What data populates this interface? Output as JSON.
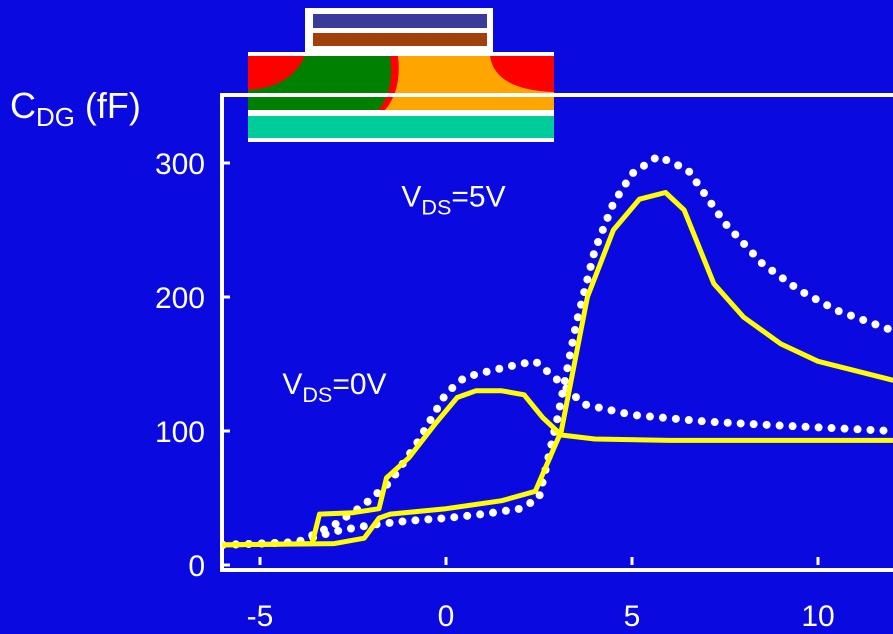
{
  "chart_data": {
    "type": "line",
    "y_label": {
      "main": "C",
      "sub": "DG",
      "rest": " (fF)"
    },
    "xlim": [
      -6,
      12
    ],
    "xticks": [
      -5,
      0,
      5,
      10
    ],
    "ylim": [
      0,
      350
    ],
    "yticks": [
      0,
      100,
      200,
      300
    ],
    "annotations": [
      {
        "main": "V",
        "sub": "DS",
        "rest": "=5V",
        "x": -1.2,
        "y": 275
      },
      {
        "main": "V",
        "sub": "DS",
        "rest": "=0V",
        "x": -4.4,
        "y": 135
      }
    ],
    "series": [
      {
        "color": "#ffffff",
        "style": "dotted",
        "x": [
          -6,
          -4,
          -3,
          -2.2,
          -1.5,
          -0.8,
          0,
          0.5,
          1.2,
          2,
          2.4,
          3,
          3.7,
          5,
          7,
          9,
          12
        ],
        "values": [
          15,
          17,
          30,
          45,
          62,
          90,
          128,
          140,
          145,
          150,
          152,
          138,
          120,
          112,
          107,
          104,
          100
        ]
      },
      {
        "color": "#ffffff",
        "style": "dotted",
        "x": [
          -6,
          -4,
          -3,
          -2,
          -1,
          0,
          1,
          2,
          2.5,
          3,
          3.5,
          4,
          4.5,
          5,
          5.7,
          6.5,
          7.5,
          8.5,
          9.5,
          10.5,
          12
        ],
        "values": [
          15,
          17,
          25,
          30,
          33,
          35,
          38,
          42,
          50,
          110,
          180,
          235,
          270,
          292,
          305,
          295,
          255,
          225,
          205,
          190,
          175
        ]
      },
      {
        "color": "#ffff00",
        "style": "solid",
        "x": [
          -6,
          -3.6,
          -3.4,
          -2.5,
          -1.8,
          -1.6,
          -1,
          -0.3,
          0.3,
          0.8,
          1.5,
          2.1,
          2.6,
          3.1,
          4,
          6,
          8,
          10,
          12
        ],
        "values": [
          15,
          16,
          38,
          39,
          42,
          65,
          80,
          105,
          125,
          130,
          130,
          127,
          110,
          97,
          94,
          93,
          93,
          93,
          93
        ]
      },
      {
        "color": "#ffff00",
        "style": "solid",
        "x": [
          -6,
          -3,
          -2.2,
          -1.8,
          -1.5,
          0,
          1.5,
          2.4,
          3.1,
          3.8,
          4.5,
          5.2,
          5.9,
          6.4,
          7.2,
          8,
          9,
          10,
          11,
          12
        ],
        "values": [
          15,
          16,
          20,
          35,
          38,
          42,
          48,
          55,
          100,
          200,
          250,
          273,
          278,
          265,
          210,
          185,
          165,
          152,
          145,
          138
        ]
      }
    ]
  }
}
